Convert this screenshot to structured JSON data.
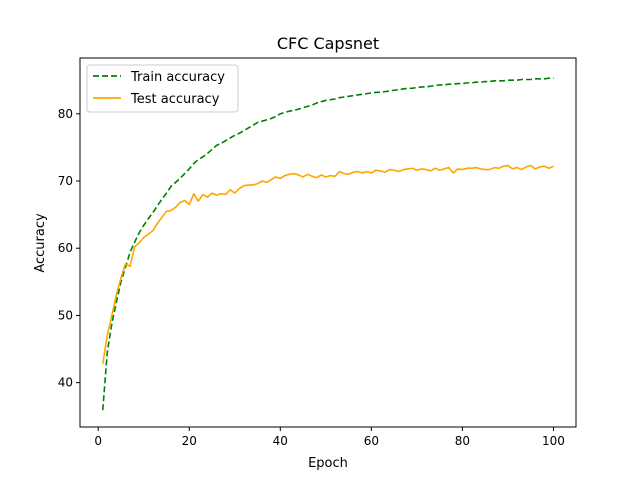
{
  "chart_data": {
    "type": "line",
    "title": "CFC Capsnet",
    "xlabel": "Epoch",
    "ylabel": "Accuracy",
    "xlim": [
      -4,
      104.95
    ],
    "ylim": [
      33.4,
      88.3
    ],
    "x_ticks": [
      0,
      20,
      40,
      60,
      80,
      100
    ],
    "y_ticks": [
      40,
      50,
      60,
      70,
      80
    ],
    "legend_position": "upper-left",
    "grid": false,
    "series": [
      {
        "name": "Train accuracy",
        "color": "#008000",
        "linestyle": "dashed",
        "x": [
          1,
          2,
          3,
          4,
          5,
          6,
          7,
          8,
          9,
          10,
          11,
          12,
          13,
          14,
          15,
          16,
          17,
          18,
          19,
          20,
          21,
          22,
          23,
          24,
          25,
          26,
          27,
          28,
          29,
          30,
          31,
          32,
          33,
          34,
          35,
          36,
          37,
          38,
          39,
          40,
          41,
          42,
          43,
          44,
          45,
          46,
          47,
          48,
          49,
          50,
          51,
          52,
          53,
          54,
          55,
          56,
          57,
          58,
          59,
          60,
          61,
          62,
          63,
          64,
          65,
          66,
          67,
          68,
          69,
          70,
          71,
          72,
          73,
          74,
          75,
          76,
          77,
          78,
          79,
          80,
          81,
          82,
          83,
          84,
          85,
          86,
          87,
          88,
          89,
          90,
          91,
          92,
          93,
          94,
          95,
          96,
          97,
          98,
          99,
          100
        ],
        "values": [
          35.9,
          44.6,
          48.8,
          52.0,
          55.0,
          57.2,
          59.4,
          60.9,
          62.3,
          63.4,
          64.4,
          65.3,
          66.3,
          67.3,
          68.2,
          69.2,
          69.8,
          70.4,
          71.1,
          71.8,
          72.6,
          73.2,
          73.6,
          74.1,
          74.7,
          75.3,
          75.6,
          76.0,
          76.4,
          76.8,
          77.1,
          77.5,
          77.9,
          78.3,
          78.7,
          78.9,
          79.1,
          79.3,
          79.6,
          80.0,
          80.2,
          80.4,
          80.5,
          80.7,
          80.9,
          81.1,
          81.3,
          81.6,
          81.8,
          82.0,
          82.1,
          82.2,
          82.4,
          82.5,
          82.6,
          82.7,
          82.8,
          82.9,
          83.0,
          83.1,
          83.2,
          83.2,
          83.3,
          83.4,
          83.5,
          83.6,
          83.7,
          83.8,
          83.8,
          83.9,
          84.0,
          84.0,
          84.1,
          84.2,
          84.3,
          84.3,
          84.4,
          84.4,
          84.5,
          84.5,
          84.6,
          84.6,
          84.7,
          84.7,
          84.8,
          84.8,
          84.9,
          84.9,
          84.9,
          85.0,
          85.0,
          85.0,
          85.1,
          85.1,
          85.1,
          85.2,
          85.2,
          85.2,
          85.3,
          85.3
        ]
      },
      {
        "name": "Test accuracy",
        "color": "#FFA500",
        "linestyle": "solid",
        "x": [
          1,
          2,
          3,
          4,
          5,
          6,
          7,
          8,
          9,
          10,
          11,
          12,
          13,
          14,
          15,
          16,
          17,
          18,
          19,
          20,
          21,
          22,
          23,
          24,
          25,
          26,
          27,
          28,
          29,
          30,
          31,
          32,
          33,
          34,
          35,
          36,
          37,
          38,
          39,
          40,
          41,
          42,
          43,
          44,
          45,
          46,
          47,
          48,
          49,
          50,
          51,
          52,
          53,
          54,
          55,
          56,
          57,
          58,
          59,
          60,
          61,
          62,
          63,
          64,
          65,
          66,
          67,
          68,
          69,
          70,
          71,
          72,
          73,
          74,
          75,
          76,
          77,
          78,
          79,
          80,
          81,
          82,
          83,
          84,
          85,
          86,
          87,
          88,
          89,
          90,
          91,
          92,
          93,
          94,
          95,
          96,
          97,
          98,
          99,
          100
        ],
        "values": [
          42.8,
          47.1,
          50.0,
          53.1,
          55.6,
          57.7,
          57.3,
          60.2,
          60.8,
          61.6,
          62.1,
          62.6,
          63.7,
          64.6,
          65.5,
          65.6,
          66.1,
          66.8,
          67.1,
          66.5,
          68.1,
          67.0,
          68.0,
          67.6,
          68.2,
          67.9,
          68.1,
          68.0,
          68.7,
          68.2,
          68.9,
          69.3,
          69.4,
          69.4,
          69.6,
          70.0,
          69.8,
          70.2,
          70.6,
          70.4,
          70.8,
          71.0,
          71.1,
          70.9,
          70.6,
          71.0,
          70.7,
          70.5,
          70.9,
          70.6,
          70.8,
          70.7,
          71.4,
          71.1,
          71.0,
          71.3,
          71.4,
          71.2,
          71.4,
          71.2,
          71.6,
          71.5,
          71.3,
          71.7,
          71.6,
          71.4,
          71.7,
          71.8,
          71.9,
          71.6,
          71.8,
          71.7,
          71.5,
          71.9,
          71.6,
          71.8,
          72.0,
          71.2,
          71.8,
          71.7,
          71.9,
          71.9,
          72.0,
          71.8,
          71.7,
          71.7,
          72.0,
          71.9,
          72.2,
          72.3,
          71.8,
          72.0,
          71.7,
          72.1,
          72.3,
          71.8,
          72.1,
          72.2,
          71.9,
          72.2
        ]
      }
    ]
  }
}
